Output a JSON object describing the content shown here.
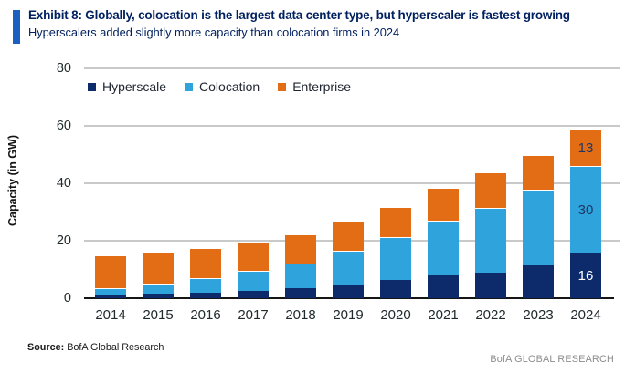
{
  "header": {
    "title": "Exhibit 8: Globally, colocation is the largest data center type, but hyperscaler is fastest growing",
    "subtitle": "Hyperscalers added slightly more capacity than colocation firms in 2024"
  },
  "footer": {
    "source_label": "Source:",
    "source_text": " BofA Global Research",
    "brand": "BofA GLOBAL RESEARCH"
  },
  "colors": {
    "accent_bar": "#1B5FC1",
    "title_navy": "#00205F",
    "hyperscale": "#0D2B6B",
    "colocation": "#2EA3DC",
    "enterprise": "#E26D15",
    "gridline": "#C9C9C9",
    "axis": "#151515",
    "brand_gray": "#8C8C8C"
  },
  "chart_data": {
    "type": "bar",
    "stacked": true,
    "title": "",
    "xlabel": "",
    "ylabel": "Capacity (in GW)",
    "ylim": [
      0,
      80
    ],
    "yticks": [
      0,
      20,
      40,
      60,
      80
    ],
    "grid": true,
    "legend_position": "top-left",
    "categories": [
      "2014",
      "2015",
      "2016",
      "2017",
      "2018",
      "2019",
      "2020",
      "2021",
      "2022",
      "2023",
      "2024"
    ],
    "series": [
      {
        "name": "Hyperscale",
        "color": "#0D2B6B",
        "values": [
          1,
          1.5,
          2,
          2.5,
          3.5,
          4.5,
          6.5,
          8,
          9,
          11.5,
          16
        ]
      },
      {
        "name": "Colocation",
        "color": "#2EA3DC",
        "values": [
          2.5,
          3.5,
          5,
          7,
          8.5,
          12,
          15,
          19,
          22.5,
          26.5,
          30
        ]
      },
      {
        "name": "Enterprise",
        "color": "#E26D15",
        "values": [
          11.5,
          11,
          10.5,
          10,
          10,
          10.5,
          10.5,
          11.5,
          12.5,
          12,
          13
        ]
      }
    ],
    "totals": [
      15,
      16,
      17.5,
      19.5,
      22,
      27,
      32,
      38.5,
      44,
      50,
      59
    ],
    "annotations": [
      {
        "category": "2024",
        "series": "Hyperscale",
        "text": "16",
        "text_color": "#FFFFFF"
      },
      {
        "category": "2024",
        "series": "Colocation",
        "text": "30",
        "text_color": "#1F3864"
      },
      {
        "category": "2024",
        "series": "Enterprise",
        "text": "13",
        "text_color": "#1F3864"
      }
    ]
  }
}
